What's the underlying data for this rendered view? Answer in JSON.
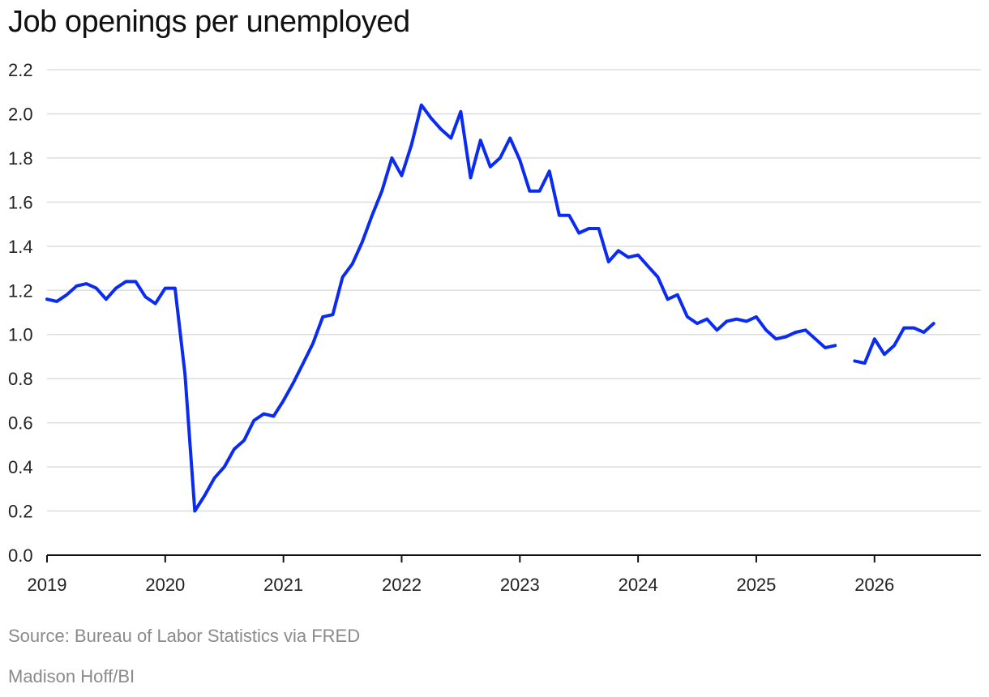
{
  "header": {
    "title": "Job openings per unemployed"
  },
  "footer": {
    "source": "Source: Bureau of Labor Statistics via FRED",
    "credit": "Madison Hoff/BI"
  },
  "colors": {
    "line": "#0b2cf0",
    "grid": "#dddddd",
    "axis": "#111111",
    "muted": "#8a8a8a"
  },
  "chart_data": {
    "type": "line",
    "title": "Job openings per unemployed",
    "xlabel": "",
    "ylabel": "",
    "x_range": [
      2019.0,
      2026.9
    ],
    "ylim": [
      0,
      2.2
    ],
    "y_ticks": [
      0.0,
      0.2,
      0.4,
      0.6,
      0.8,
      1.0,
      1.2,
      1.4,
      1.6,
      1.8,
      2.0,
      2.2
    ],
    "y_tick_labels": [
      "0.0",
      "0.2",
      "0.4",
      "0.6",
      "0.8",
      "1.0",
      "1.2",
      "1.4",
      "1.6",
      "1.8",
      "2.0",
      "2.2"
    ],
    "x_ticks": [
      2019,
      2020,
      2021,
      2022,
      2023,
      2024,
      2025,
      2026
    ],
    "x_tick_labels": [
      "2019",
      "2020",
      "2021",
      "2022",
      "2023",
      "2024",
      "2025",
      "2026"
    ],
    "grid": true,
    "legend": "none",
    "series": [
      {
        "segments": [
          {
            "x": [
              2019.0,
              2019.083,
              2019.167,
              2019.25,
              2019.333,
              2019.417,
              2019.5,
              2019.583,
              2019.667,
              2019.75,
              2019.833,
              2019.917,
              2020.0,
              2020.083,
              2020.167,
              2020.25,
              2020.333,
              2020.417,
              2020.5,
              2020.583,
              2020.667,
              2020.75,
              2020.833,
              2020.917,
              2021.0,
              2021.083,
              2021.167,
              2021.25,
              2021.333,
              2021.417,
              2021.5,
              2021.583,
              2021.667,
              2021.75,
              2021.833,
              2021.917,
              2022.0,
              2022.083,
              2022.167,
              2022.25,
              2022.333,
              2022.417,
              2022.5,
              2022.583,
              2022.667,
              2022.75,
              2022.833,
              2022.917,
              2023.0,
              2023.083,
              2023.167,
              2023.25,
              2023.333,
              2023.417,
              2023.5,
              2023.583,
              2023.667,
              2023.75,
              2023.833,
              2023.917,
              2024.0,
              2024.083,
              2024.167,
              2024.25,
              2024.333,
              2024.417,
              2024.5,
              2024.583,
              2024.667,
              2024.75,
              2024.833,
              2024.917,
              2025.0,
              2025.083,
              2025.167,
              2025.25,
              2025.333,
              2025.417,
              2025.5,
              2025.583,
              2025.667
            ],
            "y": [
              1.16,
              1.15,
              1.18,
              1.22,
              1.23,
              1.21,
              1.16,
              1.21,
              1.24,
              1.24,
              1.17,
              1.14,
              1.21,
              1.21,
              0.82,
              0.2,
              0.27,
              0.35,
              0.4,
              0.48,
              0.52,
              0.61,
              0.64,
              0.63,
              0.7,
              0.78,
              0.87,
              0.96,
              1.08,
              1.09,
              1.26,
              1.32,
              1.42,
              1.54,
              1.65,
              1.8,
              1.72,
              1.86,
              2.04,
              1.98,
              1.93,
              1.89,
              2.01,
              1.71,
              1.88,
              1.76,
              1.8,
              1.89,
              1.79,
              1.65,
              1.65,
              1.74,
              1.54,
              1.54,
              1.46,
              1.48,
              1.48,
              1.33,
              1.38,
              1.35,
              1.36,
              1.31,
              1.26,
              1.16,
              1.18,
              1.08,
              1.05,
              1.07,
              1.02,
              1.06,
              1.07,
              1.06,
              1.08,
              1.02,
              0.98,
              0.99,
              1.01,
              1.02,
              0.98,
              0.94,
              0.95
            ]
          },
          {
            "x": [
              2025.833,
              2025.917,
              2026.0,
              2026.083,
              2026.167,
              2026.25,
              2026.333,
              2026.417,
              2026.5
            ],
            "y": [
              0.88,
              0.87,
              0.98,
              0.91,
              0.95,
              1.03,
              1.03,
              1.01,
              1.05
            ]
          }
        ]
      }
    ]
  }
}
